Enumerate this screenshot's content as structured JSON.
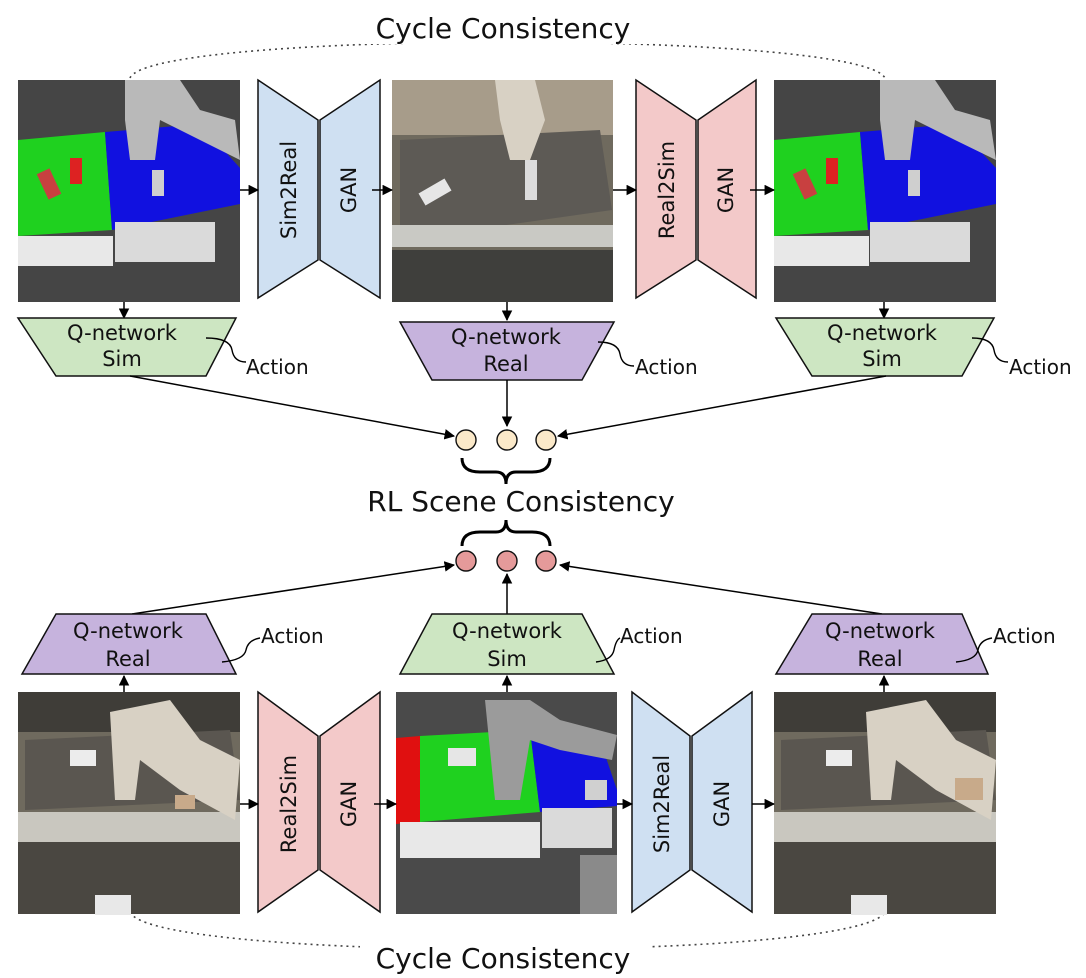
{
  "diagram": {
    "top_cycle_label": "Cycle Consistency",
    "bottom_cycle_label": "Cycle Consistency",
    "rl_label": "RL Scene Consistency",
    "top_row": {
      "gan1": {
        "name": "Sim2Real",
        "sub": "GAN",
        "color": "#cfe0f2"
      },
      "gan2": {
        "name": "Real2Sim",
        "sub": "GAN",
        "color": "#f3c9c9"
      },
      "qnets": [
        {
          "line1": "Q-network",
          "line2": "Sim",
          "color": "#cde6c2",
          "action": "Action"
        },
        {
          "line1": "Q-network",
          "line2": "Real",
          "color": "#c6b3dd",
          "action": "Action"
        },
        {
          "line1": "Q-network",
          "line2": "Sim",
          "color": "#cde6c2",
          "action": "Action"
        }
      ],
      "images": [
        "simulated scene",
        "generated realistic scene",
        "reconstructed simulated scene"
      ]
    },
    "bottom_row": {
      "gan1": {
        "name": "Real2Sim",
        "sub": "GAN",
        "color": "#f3c9c9"
      },
      "gan2": {
        "name": "Sim2Real",
        "sub": "GAN",
        "color": "#cfe0f2"
      },
      "qnets": [
        {
          "line1": "Q-network",
          "line2": "Real",
          "color": "#c6b3dd",
          "action": "Action"
        },
        {
          "line1": "Q-network",
          "line2": "Sim",
          "color": "#cde6c2",
          "action": "Action"
        },
        {
          "line1": "Q-network",
          "line2": "Real",
          "color": "#c6b3dd",
          "action": "Action"
        }
      ],
      "images": [
        "real scene",
        "generated simulated scene",
        "reconstructed real scene"
      ]
    },
    "colors": {
      "top_circles": "#fbe9c9",
      "bottom_circles": "#e59a9a",
      "sim_green": "#1fd11f",
      "sim_blue": "#1111e0",
      "sim_floor": "#4a4a4a",
      "real_floor": "#6f6a5e"
    }
  }
}
